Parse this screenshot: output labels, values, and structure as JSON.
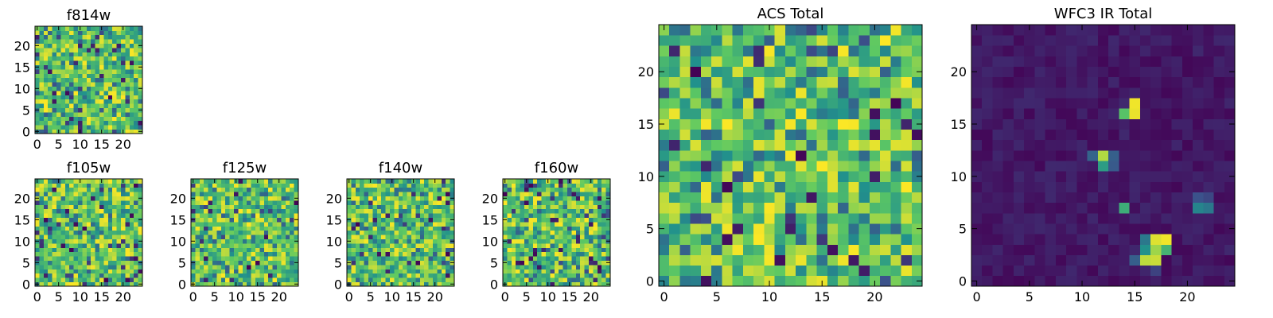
{
  "figure": {
    "background": "#ffffff",
    "colormap": "viridis",
    "colormap_stops": [
      "#440154",
      "#3b528b",
      "#21918c",
      "#5ec962",
      "#fde725"
    ]
  },
  "chart_data": [
    {
      "id": "f814w",
      "type": "heatmap",
      "title": "f814w",
      "grid_size": 25,
      "xlim": [
        -0.5,
        24.5
      ],
      "ylim": [
        -0.5,
        24.5
      ],
      "xticks": [
        0,
        5,
        10,
        15,
        20
      ],
      "yticks": [
        0,
        5,
        10,
        15,
        20
      ],
      "value_range": [
        0,
        1
      ],
      "pattern": "noise",
      "bright_pixels": [],
      "seed": 814
    },
    {
      "id": "f105w",
      "type": "heatmap",
      "title": "f105w",
      "grid_size": 25,
      "xlim": [
        -0.5,
        24.5
      ],
      "ylim": [
        -0.5,
        24.5
      ],
      "xticks": [
        0,
        5,
        10,
        15,
        20
      ],
      "yticks": [
        0,
        5,
        10,
        15,
        20
      ],
      "value_range": [
        0,
        1
      ],
      "pattern": "noise",
      "bright_pixels": [],
      "seed": 105
    },
    {
      "id": "f125w",
      "type": "heatmap",
      "title": "f125w",
      "grid_size": 25,
      "xlim": [
        -0.5,
        24.5
      ],
      "ylim": [
        -0.5,
        24.5
      ],
      "xticks": [
        0,
        5,
        10,
        15,
        20
      ],
      "yticks": [
        0,
        5,
        10,
        15,
        20
      ],
      "value_range": [
        0,
        1
      ],
      "pattern": "noise",
      "bright_pixels": [],
      "seed": 125
    },
    {
      "id": "f140w",
      "type": "heatmap",
      "title": "f140w",
      "grid_size": 25,
      "xlim": [
        -0.5,
        24.5
      ],
      "ylim": [
        -0.5,
        24.5
      ],
      "xticks": [
        0,
        5,
        10,
        15,
        20
      ],
      "yticks": [
        0,
        5,
        10,
        15,
        20
      ],
      "value_range": [
        0,
        1
      ],
      "pattern": "noise",
      "bright_pixels": [],
      "seed": 140
    },
    {
      "id": "f160w",
      "type": "heatmap",
      "title": "f160w",
      "grid_size": 25,
      "xlim": [
        -0.5,
        24.5
      ],
      "ylim": [
        -0.5,
        24.5
      ],
      "xticks": [
        0,
        5,
        10,
        15,
        20
      ],
      "yticks": [
        0,
        5,
        10,
        15,
        20
      ],
      "value_range": [
        0,
        1
      ],
      "pattern": "noise",
      "bright_pixels": [],
      "seed": 160
    },
    {
      "id": "acs-total",
      "type": "heatmap",
      "title": "ACS Total",
      "grid_size": 25,
      "xlim": [
        -0.5,
        24.5
      ],
      "ylim": [
        -0.5,
        24.5
      ],
      "xticks": [
        0,
        5,
        10,
        15,
        20
      ],
      "yticks": [
        0,
        5,
        10,
        15,
        20
      ],
      "value_range": [
        0,
        1
      ],
      "pattern": "noise",
      "bright_pixels": [],
      "seed": 2001
    },
    {
      "id": "wfc3-ir-total",
      "type": "heatmap",
      "title": "WFC3 IR Total",
      "grid_size": 25,
      "xlim": [
        -0.5,
        24.5
      ],
      "ylim": [
        -0.5,
        24.5
      ],
      "xticks": [
        0,
        5,
        10,
        15,
        20
      ],
      "yticks": [
        0,
        5,
        10,
        15,
        20
      ],
      "value_range": [
        0,
        1
      ],
      "pattern": "background-with-sources",
      "background_level": [
        0.02,
        0.12
      ],
      "bright_pixels": [
        {
          "x": 15,
          "y": 17,
          "v": 0.98
        },
        {
          "x": 15,
          "y": 16,
          "v": 0.97
        },
        {
          "x": 14,
          "y": 16,
          "v": 0.72
        },
        {
          "x": 14,
          "y": 17,
          "v": 0.12
        },
        {
          "x": 12,
          "y": 12,
          "v": 0.88
        },
        {
          "x": 12,
          "y": 11,
          "v": 0.55
        },
        {
          "x": 11,
          "y": 12,
          "v": 0.32
        },
        {
          "x": 13,
          "y": 12,
          "v": 0.3
        },
        {
          "x": 13,
          "y": 11,
          "v": 0.28
        },
        {
          "x": 14,
          "y": 7,
          "v": 0.62
        },
        {
          "x": 21,
          "y": 7,
          "v": 0.45
        },
        {
          "x": 22,
          "y": 7,
          "v": 0.4
        },
        {
          "x": 21,
          "y": 8,
          "v": 0.25
        },
        {
          "x": 22,
          "y": 8,
          "v": 0.22
        },
        {
          "x": 16,
          "y": 4,
          "v": 0.4
        },
        {
          "x": 16,
          "y": 3,
          "v": 0.5
        },
        {
          "x": 17,
          "y": 4,
          "v": 0.95
        },
        {
          "x": 18,
          "y": 4,
          "v": 0.98
        },
        {
          "x": 17,
          "y": 3,
          "v": 0.85
        },
        {
          "x": 18,
          "y": 3,
          "v": 0.65
        },
        {
          "x": 17,
          "y": 2,
          "v": 0.92
        },
        {
          "x": 16,
          "y": 2,
          "v": 0.9
        },
        {
          "x": 15,
          "y": 2,
          "v": 0.3
        },
        {
          "x": 17,
          "y": 1,
          "v": 0.2
        }
      ],
      "seed": 3001
    }
  ]
}
